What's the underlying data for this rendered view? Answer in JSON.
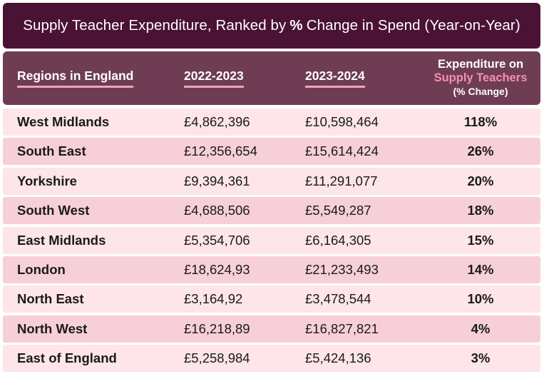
{
  "title": {
    "before": "Supply Teacher Expenditure, Ranked by",
    "bold": "%",
    "after": "Change in Spend (Year-on-Year)"
  },
  "header": {
    "region": "Regions in England",
    "year1": "2022-2023",
    "year2": "2023-2024",
    "exp_line1": "Expenditure on",
    "exp_line2": "Supply Teachers",
    "exp_line3": "(% Change)"
  },
  "colors": {
    "title_bg": "#4a1234",
    "header_bg": "#6e3d53",
    "accent_pink": "#f58fb4",
    "row_light": "#fde5ea",
    "row_dark": "#f7cfd9"
  },
  "chart_data": {
    "type": "table",
    "title": "Supply Teacher Expenditure, Ranked by % Change in Spend (Year-on-Year)",
    "columns": [
      "Regions in England",
      "2022-2023",
      "2023-2024",
      "Expenditure on Supply Teachers (% Change)"
    ],
    "rows": [
      {
        "region": "West Midlands",
        "y1": "£4,862,396",
        "y2": "£10,598,464",
        "pct": "118%"
      },
      {
        "region": "South East",
        "y1": "£12,356,654",
        "y2": "£15,614,424",
        "pct": "26%"
      },
      {
        "region": "Yorkshire",
        "y1": "£9,394,361",
        "y2": "£11,291,077",
        "pct": "20%"
      },
      {
        "region": "South West",
        "y1": "£4,688,506",
        "y2": "£5,549,287",
        "pct": "18%"
      },
      {
        "region": "East Midlands",
        "y1": "£5,354,706",
        "y2": "£6,164,305",
        "pct": "15%"
      },
      {
        "region": "London",
        "y1": "£18,624,93",
        "y2": "£21,233,493",
        "pct": "14%"
      },
      {
        "region": "North East",
        "y1": "£3,164,92",
        "y2": "£3,478,544",
        "pct": "10%"
      },
      {
        "region": "North West",
        "y1": "£16,218,89",
        "y2": "£16,827,821",
        "pct": "4%"
      },
      {
        "region": "East of England",
        "y1": "£5,258,984",
        "y2": "£5,424,136",
        "pct": "3%"
      }
    ]
  }
}
